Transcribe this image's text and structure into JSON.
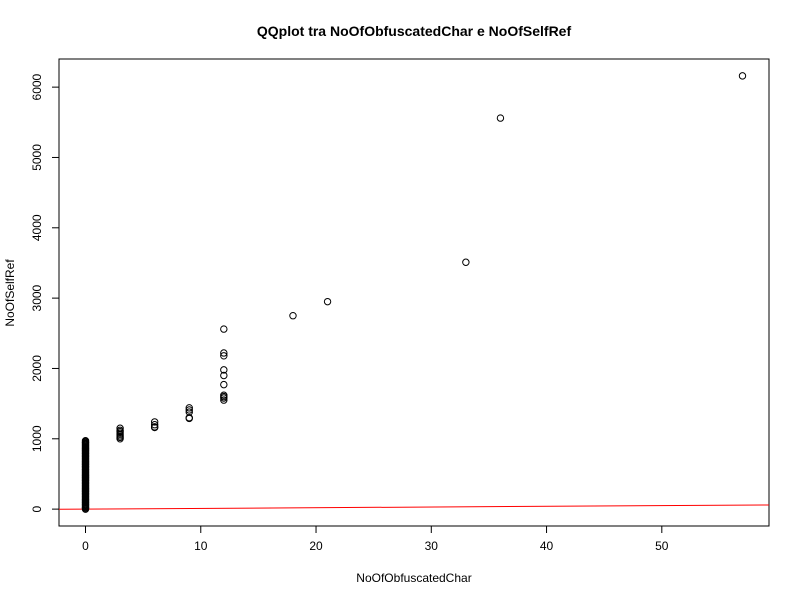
{
  "chart_data": {
    "type": "scatter",
    "title": "QQplot tra NoOfObfuscatedChar e NoOfSelfRef",
    "xlabel": "NoOfObfuscatedChar",
    "ylabel": "NoOfSelfRef",
    "xlim": [
      -2.3,
      59.3
    ],
    "ylim": [
      -240,
      6400
    ],
    "x_ticks": [
      0,
      10,
      20,
      30,
      40,
      50
    ],
    "y_ticks": [
      0,
      1000,
      2000,
      3000,
      4000,
      5000,
      6000
    ],
    "grid": false,
    "legend": "none",
    "point_color": "#000000",
    "reference_line": {
      "color": "#ff0000",
      "intercept": 0,
      "slope": 1
    },
    "series": [
      {
        "points": [
          {
            "x": 57,
            "y": 6160
          },
          {
            "x": 36,
            "y": 5560
          },
          {
            "x": 33,
            "y": 3510
          },
          {
            "x": 21,
            "y": 2950
          },
          {
            "x": 18,
            "y": 2750
          },
          {
            "x": 12,
            "y": 2560
          },
          {
            "x": 12,
            "y": 2220
          },
          {
            "x": 12,
            "y": 2180
          },
          {
            "x": 12,
            "y": 1980
          },
          {
            "x": 12,
            "y": 1900
          },
          {
            "x": 12,
            "y": 1770
          },
          {
            "x": 12,
            "y": 1620
          },
          {
            "x": 12,
            "y": 1600
          },
          {
            "x": 12,
            "y": 1580
          },
          {
            "x": 12,
            "y": 1550
          },
          {
            "x": 9,
            "y": 1440
          },
          {
            "x": 9,
            "y": 1410
          },
          {
            "x": 9,
            "y": 1380
          },
          {
            "x": 9,
            "y": 1300
          },
          {
            "x": 9,
            "y": 1290
          },
          {
            "x": 6,
            "y": 1240
          },
          {
            "x": 6,
            "y": 1200
          },
          {
            "x": 6,
            "y": 1170
          },
          {
            "x": 6,
            "y": 1160
          },
          {
            "x": 3,
            "y": 1150
          },
          {
            "x": 3,
            "y": 1120
          },
          {
            "x": 3,
            "y": 1100
          },
          {
            "x": 3,
            "y": 1080
          },
          {
            "x": 3,
            "y": 1060
          },
          {
            "x": 3,
            "y": 1040
          },
          {
            "x": 3,
            "y": 1020
          },
          {
            "x": 3,
            "y": 1000
          }
        ],
        "dense_column": {
          "x": 0,
          "y_min": 0,
          "y_max": 980,
          "step": 12
        }
      }
    ]
  }
}
